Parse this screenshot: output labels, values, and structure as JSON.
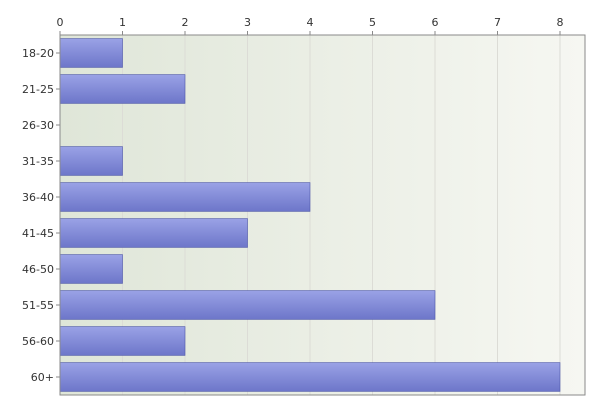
{
  "chart_data": {
    "type": "bar",
    "orientation": "horizontal",
    "categories": [
      "18-20",
      "21-25",
      "26-30",
      "31-35",
      "36-40",
      "41-45",
      "46-50",
      "51-55",
      "56-60",
      "60+"
    ],
    "values": [
      1,
      2,
      0,
      1,
      4,
      3,
      1,
      6,
      2,
      8
    ],
    "xlim": [
      0,
      8.4
    ],
    "x_ticks": [
      "0",
      "1",
      "2",
      "3",
      "4",
      "5",
      "6",
      "7",
      "8"
    ],
    "x_axis_position": "top",
    "grid": true,
    "legend": "none",
    "colors": {
      "bar_top": "#9aa2e6",
      "bar_bottom": "#6d76c9",
      "bar_stroke": "#4c56a8",
      "plot_bg_left": "#dfe6d8",
      "plot_bg_right": "#f6f7f2",
      "grid": "#dcdcd6",
      "axis": "#8a8a8a"
    }
  }
}
